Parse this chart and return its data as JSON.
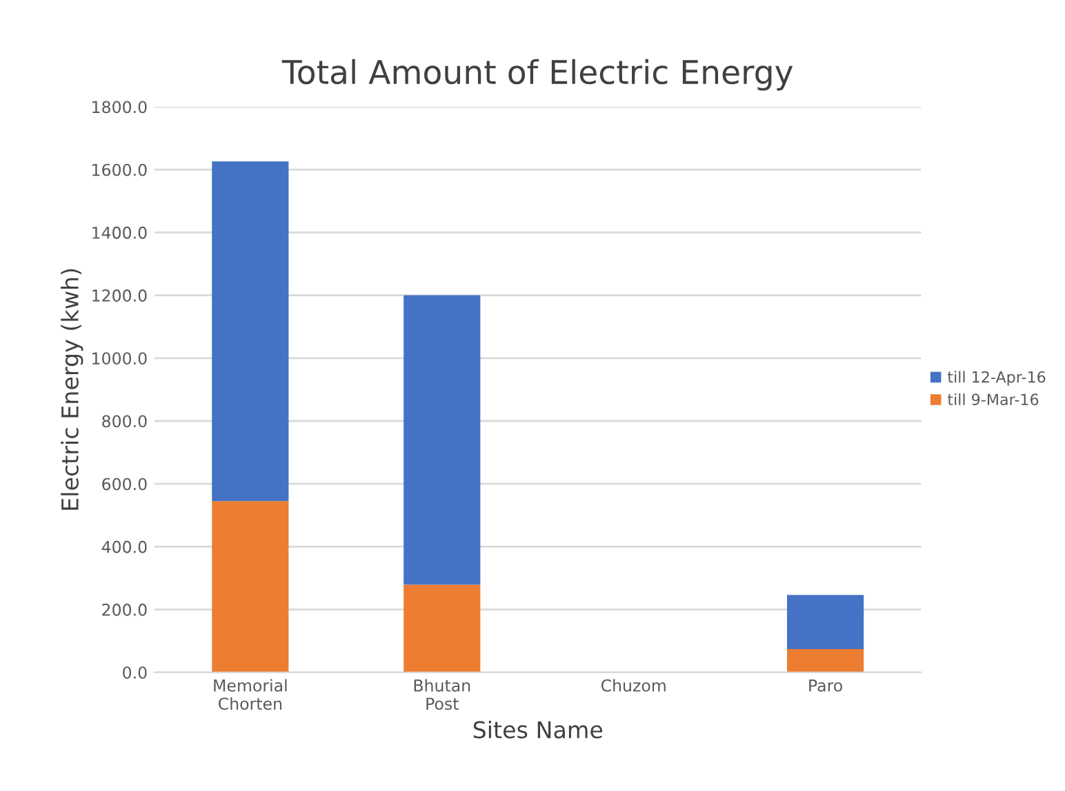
{
  "chart_data": {
    "type": "bar",
    "title": "Total Amount of Electric Energy",
    "xlabel": "Sites Name",
    "ylabel": "Electric Energy (kwh)",
    "categories": [
      "Memorial\nChorten",
      "Bhutan\nPost",
      "Chuzom",
      "Paro"
    ],
    "stacked": true,
    "series": [
      {
        "name": "till 9-Mar-16",
        "color": "#ed7d31",
        "values": [
          545,
          279,
          0,
          74
        ]
      },
      {
        "name": "till 12-Apr-16",
        "color": "#4472c4",
        "values": [
          1081,
          921,
          0,
          172
        ]
      }
    ],
    "ylim": [
      0,
      1800
    ],
    "yticks": [
      {
        "value": 0,
        "label": "0.0"
      },
      {
        "value": 200,
        "label": "200.0"
      },
      {
        "value": 400,
        "label": "400.0"
      },
      {
        "value": 600,
        "label": "600.0"
      },
      {
        "value": 800,
        "label": "800.0"
      },
      {
        "value": 1000,
        "label": "1000.0"
      },
      {
        "value": 1200,
        "label": "1200.0"
      },
      {
        "value": 1400,
        "label": "1400.0"
      },
      {
        "value": 1600,
        "label": "1600.0"
      },
      {
        "value": 1800,
        "label": "1800.0"
      }
    ],
    "grid": "y",
    "legend": "right"
  }
}
